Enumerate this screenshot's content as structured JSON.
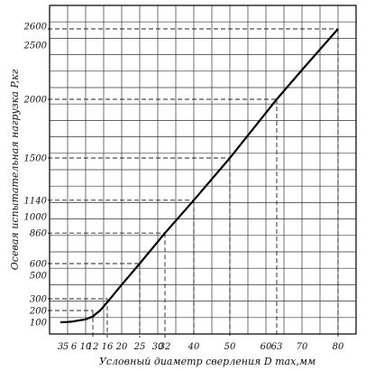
{
  "chart_data": {
    "type": "line",
    "ylabel": "Осевая испытательная нагрузка P,кг",
    "xlabel": "Условный диаметр сверления D max,мм",
    "x_ticks": [
      "3",
      "5",
      "6",
      "10",
      "12",
      "16",
      "20",
      "25",
      "30",
      "32",
      "40",
      "50",
      "60",
      "63",
      "70",
      "80"
    ],
    "x_tick_values": [
      3,
      5,
      6,
      10,
      12,
      16,
      20,
      25,
      30,
      32,
      40,
      50,
      60,
      63,
      70,
      80
    ],
    "y_ticks": [
      "100",
      "200",
      "300",
      "500",
      "600",
      "860",
      "1000",
      "1140",
      "1500",
      "2000",
      "2500",
      "2600"
    ],
    "y_tick_values": [
      100,
      200,
      300,
      500,
      600,
      860,
      1000,
      1140,
      1500,
      2000,
      2500,
      2600
    ],
    "xlim": [
      0,
      85
    ],
    "ylim": [
      0,
      2800
    ],
    "grid": true,
    "x": [
      3,
      5,
      6,
      8,
      10,
      12,
      14,
      16,
      20,
      25,
      32,
      40,
      50,
      63,
      70,
      80
    ],
    "y": [
      100,
      102,
      105,
      115,
      125,
      150,
      200,
      270,
      420,
      600,
      860,
      1140,
      1500,
      2000,
      2250,
      2600
    ],
    "dashed_refs": [
      {
        "x": 12,
        "y": 200
      },
      {
        "x": 16,
        "y": 300
      },
      {
        "x": 25,
        "y": 600
      },
      {
        "x": 32,
        "y": 860
      },
      {
        "x": 40,
        "y": 1140
      },
      {
        "x": 50,
        "y": 1500
      },
      {
        "x": 63,
        "y": 2000
      },
      {
        "x": 80,
        "y": 2600
      }
    ]
  }
}
